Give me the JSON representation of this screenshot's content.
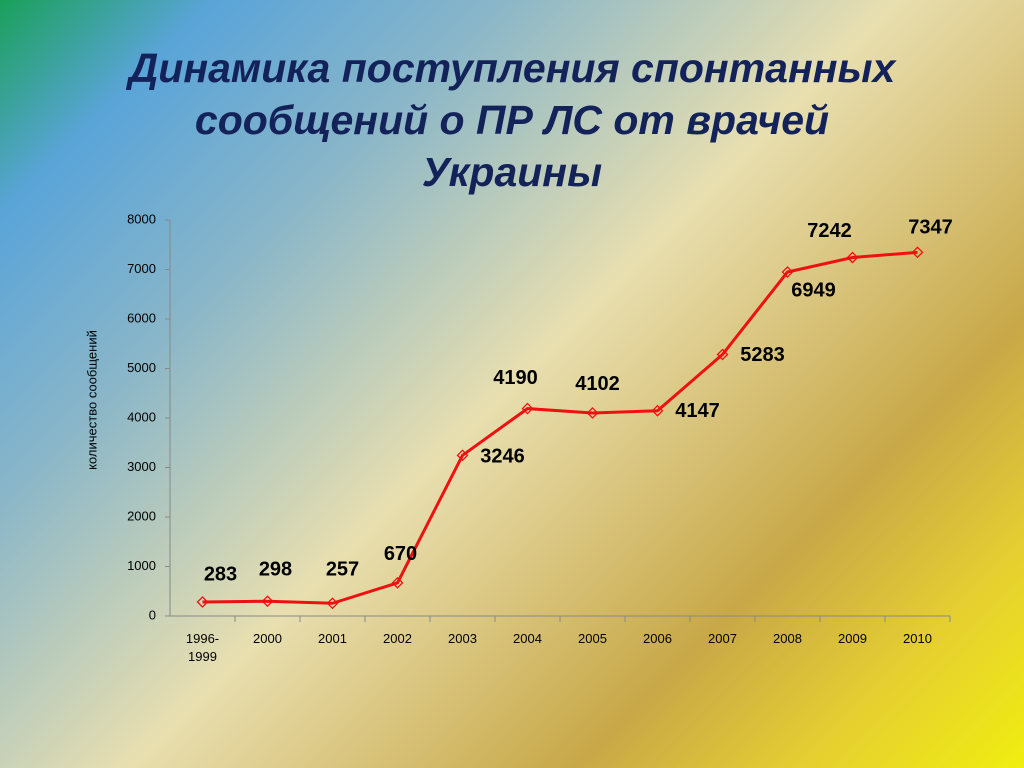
{
  "chart_data": {
    "type": "line",
    "title": [
      "Динамика поступления спонтанных",
      "сообщений о ПР ЛС от врачей",
      "Украины"
    ],
    "y_label": "количество сообщений",
    "categories": [
      "1996-1999",
      "2000",
      "2001",
      "2002",
      "2003",
      "2004",
      "2005",
      "2006",
      "2007",
      "2008",
      "2009",
      "2010"
    ],
    "series": [
      {
        "color": "#ee1111",
        "values": [
          283,
          298,
          257,
          670,
          3246,
          4190,
          4102,
          4147,
          5283,
          6949,
          7242,
          7347
        ]
      }
    ],
    "ylim": [
      0,
      8000
    ],
    "yticks": [
      0,
      1000,
      2000,
      3000,
      4000,
      5000,
      6000,
      7000,
      8000
    ]
  }
}
